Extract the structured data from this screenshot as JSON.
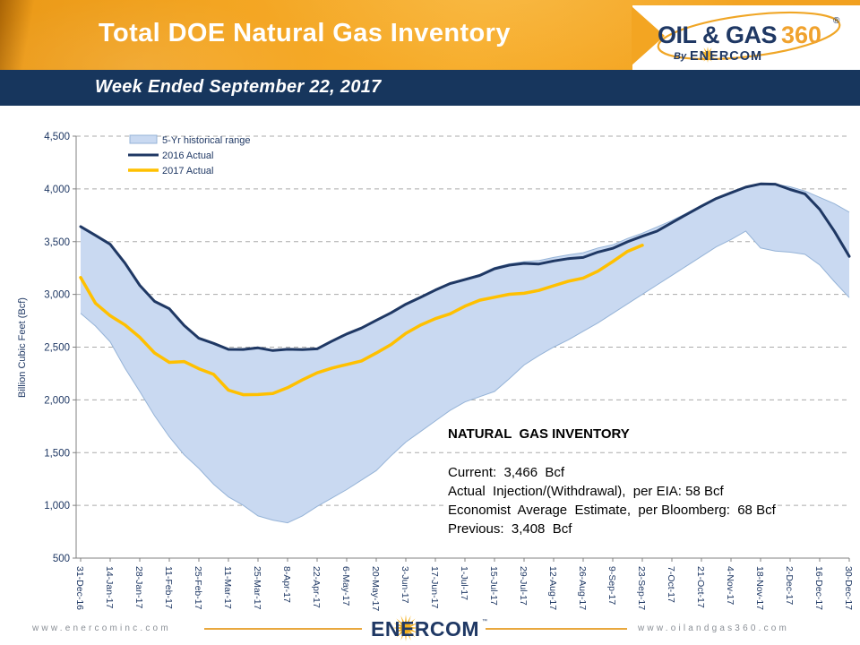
{
  "header": {
    "title": "Total DOE Natural Gas Inventory",
    "subtitle": "Week Ended September 22, 2017"
  },
  "logo": {
    "oil_gas": "OIL & GAS",
    "three_sixty": "360",
    "registered": "®",
    "by": "By",
    "enercom": "ENERCOM"
  },
  "inventory_box": {
    "title": "NATURAL  GAS INVENTORY",
    "lines": [
      "Current:  3,466  Bcf",
      "Actual  Injection/(Withdrawal),  per EIA: 58 Bcf",
      "Economist  Average  Estimate,  per Bloomberg:  68 Bcf",
      "Previous:  3,408  Bcf"
    ]
  },
  "footer": {
    "left_url": "www.enercominc.com",
    "right_url": "www.oilandgas360.com",
    "enercom": "ENERCOM",
    "trademark": "™"
  },
  "colors": {
    "header_orange": "#F3A522",
    "navy": "#17365D",
    "gold": "#FFC000",
    "band_fill": "#C9D9F1",
    "band_edge": "#95B3D7"
  },
  "chart_data": {
    "type": "area",
    "title": "",
    "xlabel": "",
    "ylabel": "Billion Cubic Feet (Bcf)",
    "ylim": [
      500,
      4500
    ],
    "ytick_step": 500,
    "grid": "dashed-horizontal",
    "legend_position": "top-left-inside",
    "weeks": 53,
    "x_labels": [
      "31-Dec-16",
      "14-Jan-17",
      "28-Jan-17",
      "11-Feb-17",
      "25-Feb-17",
      "11-Mar-17",
      "25-Mar-17",
      "8-Apr-17",
      "22-Apr-17",
      "6-May-17",
      "20-May-17",
      "3-Jun-17",
      "17-Jun-17",
      "1-Jul-17",
      "15-Jul-17",
      "29-Jul-17",
      "12-Aug-17",
      "26-Aug-17",
      "9-Sep-17",
      "23-Sep-17",
      "7-Oct-17",
      "21-Oct-17",
      "4-Nov-17",
      "18-Nov-17",
      "2-Dec-17",
      "16-Dec-17",
      "30-Dec-17"
    ],
    "series": [
      {
        "name": "5-Yr historical range",
        "type": "band",
        "fill": "#C9D9F1",
        "edge": "#95B3D7",
        "upper": [
          3643,
          3555,
          3470,
          3290,
          3080,
          2930,
          2860,
          2700,
          2580,
          2530,
          2475,
          2475,
          2490,
          2465,
          2478,
          2475,
          2484,
          2557,
          2625,
          2681,
          2760,
          2830,
          2915,
          2980,
          3050,
          3110,
          3150,
          3190,
          3255,
          3290,
          3310,
          3320,
          3350,
          3375,
          3395,
          3440,
          3470,
          3530,
          3580,
          3640,
          3700,
          3770,
          3845,
          3915,
          3965,
          4020,
          4047,
          4045,
          4020,
          3980,
          3920,
          3860,
          3780
        ],
        "lower": [
          2820,
          2700,
          2550,
          2300,
          2080,
          1850,
          1650,
          1480,
          1350,
          1200,
          1080,
          1000,
          900,
          860,
          835,
          900,
          990,
          1070,
          1150,
          1240,
          1330,
          1470,
          1600,
          1700,
          1800,
          1900,
          1980,
          2030,
          2080,
          2200,
          2330,
          2420,
          2500,
          2570,
          2650,
          2730,
          2820,
          2910,
          3000,
          3090,
          3180,
          3270,
          3360,
          3450,
          3520,
          3600,
          3440,
          3410,
          3400,
          3380,
          3280,
          3120,
          2970
        ]
      },
      {
        "name": "2016 Actual",
        "type": "line",
        "color": "#1F3864",
        "width": 3,
        "values": [
          3643,
          3560,
          3475,
          3297,
          3086,
          2934,
          2864,
          2706,
          2584,
          2536,
          2479,
          2478,
          2493,
          2468,
          2480,
          2477,
          2484,
          2557,
          2625,
          2681,
          2754,
          2825,
          2907,
          2972,
          3041,
          3103,
          3140,
          3179,
          3243,
          3277,
          3294,
          3288,
          3317,
          3339,
          3350,
          3401,
          3437,
          3499,
          3551,
          3600,
          3680,
          3759,
          3836,
          3909,
          3963,
          4017,
          4047,
          4045,
          3995,
          3953,
          3806,
          3597,
          3360
        ]
      },
      {
        "name": "2017 Actual",
        "type": "line",
        "color": "#FFC000",
        "width": 3.5,
        "values": [
          3160,
          2917,
          2798,
          2711,
          2593,
          2445,
          2356,
          2363,
          2295,
          2242,
          2092,
          2049,
          2051,
          2061,
          2115,
          2189,
          2256,
          2301,
          2335,
          2369,
          2444,
          2525,
          2631,
          2709,
          2770,
          2816,
          2888,
          2945,
          2973,
          3001,
          3010,
          3038,
          3082,
          3125,
          3155,
          3220,
          3311,
          3408,
          3466
        ]
      }
    ],
    "style": {
      "grid_color": "#ABABAB",
      "axis_color": "#808080",
      "text_color": "#1F3864"
    }
  }
}
